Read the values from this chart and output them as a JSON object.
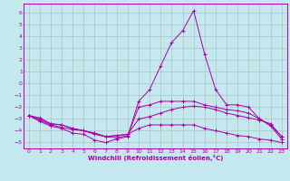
{
  "xlabel": "Windchill (Refroidissement éolien,°C)",
  "background_color": "#c5e8ee",
  "grid_color": "#aacccc",
  "line_color": "#aa00aa",
  "xlim": [
    -0.5,
    23.5
  ],
  "ylim": [
    -5.5,
    6.8
  ],
  "xticks": [
    0,
    1,
    2,
    3,
    4,
    5,
    6,
    7,
    8,
    9,
    10,
    11,
    12,
    13,
    14,
    15,
    16,
    17,
    18,
    19,
    20,
    21,
    22,
    23
  ],
  "yticks": [
    -5,
    -4,
    -3,
    -2,
    -1,
    0,
    1,
    2,
    3,
    4,
    5,
    6
  ],
  "series": [
    {
      "x": [
        0,
        1,
        2,
        3,
        4,
        5,
        6,
        7,
        8,
        9,
        10,
        11,
        12,
        13,
        14,
        15,
        16,
        17,
        18,
        19,
        20,
        21,
        22,
        23
      ],
      "y": [
        -2.7,
        -3.2,
        -3.6,
        -3.8,
        -4.2,
        -4.3,
        -4.8,
        -5.0,
        -4.7,
        -4.5,
        -1.5,
        -0.5,
        1.5,
        3.5,
        4.5,
        6.2,
        2.5,
        -0.5,
        -1.8,
        -1.8,
        -2.0,
        -3.0,
        -3.6,
        -4.7
      ]
    },
    {
      "x": [
        0,
        1,
        2,
        3,
        4,
        5,
        6,
        7,
        8,
        9,
        10,
        11,
        12,
        13,
        14,
        15,
        16,
        17,
        18,
        19,
        20,
        21,
        22,
        23
      ],
      "y": [
        -2.7,
        -3.1,
        -3.5,
        -3.7,
        -3.9,
        -4.0,
        -4.3,
        -4.5,
        -4.6,
        -4.4,
        -2.0,
        -1.8,
        -1.5,
        -1.5,
        -1.5,
        -1.5,
        -1.8,
        -2.0,
        -2.2,
        -2.3,
        -2.5,
        -3.0,
        -3.5,
        -4.5
      ]
    },
    {
      "x": [
        0,
        1,
        2,
        3,
        4,
        5,
        6,
        7,
        8,
        9,
        10,
        11,
        12,
        13,
        14,
        15,
        16,
        17,
        18,
        19,
        20,
        21,
        22,
        23
      ],
      "y": [
        -2.7,
        -3.0,
        -3.4,
        -3.5,
        -3.8,
        -4.0,
        -4.2,
        -4.5,
        -4.4,
        -4.3,
        -3.0,
        -2.8,
        -2.5,
        -2.2,
        -2.0,
        -1.9,
        -2.0,
        -2.2,
        -2.5,
        -2.7,
        -2.9,
        -3.1,
        -3.4,
        -4.5
      ]
    },
    {
      "x": [
        0,
        1,
        2,
        3,
        4,
        5,
        6,
        7,
        8,
        9,
        10,
        11,
        12,
        13,
        14,
        15,
        16,
        17,
        18,
        19,
        20,
        21,
        22,
        23
      ],
      "y": [
        -2.7,
        -2.9,
        -3.4,
        -3.5,
        -3.8,
        -4.0,
        -4.2,
        -4.5,
        -4.4,
        -4.3,
        -3.8,
        -3.5,
        -3.5,
        -3.5,
        -3.5,
        -3.5,
        -3.8,
        -4.0,
        -4.2,
        -4.4,
        -4.5,
        -4.7,
        -4.8,
        -5.0
      ]
    }
  ]
}
